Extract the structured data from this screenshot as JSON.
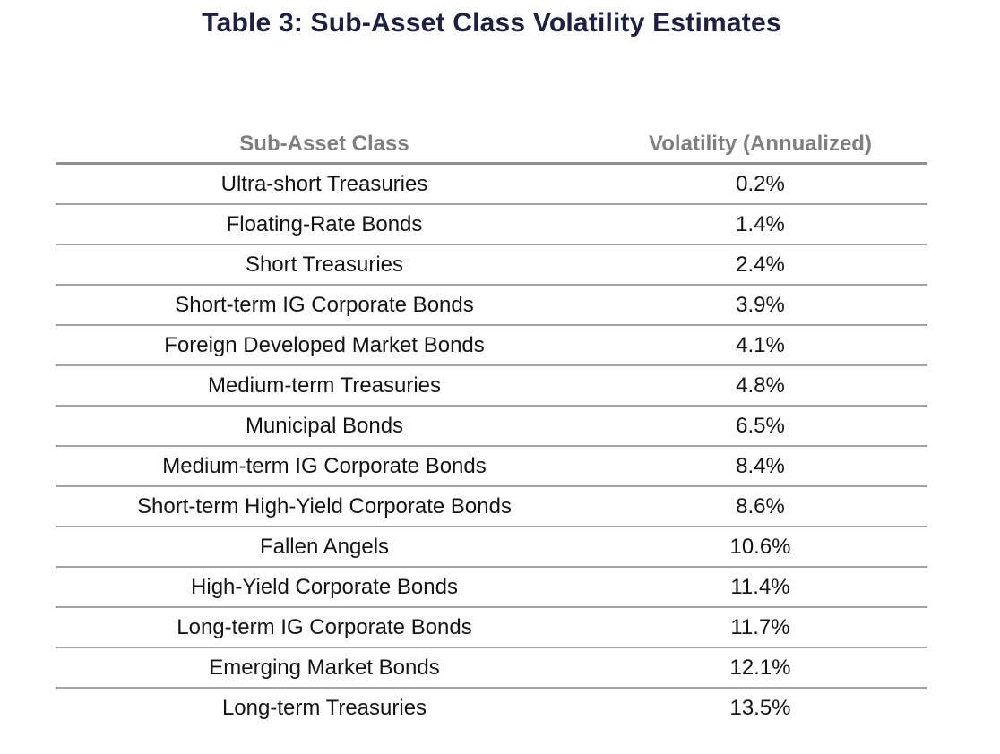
{
  "page": {
    "background_color": "#ffffff",
    "title_color": "#1e1f45",
    "header_text_color": "#7f7f7f",
    "row_text_color": "#141414",
    "separator_line_color": "#a4a4a4"
  },
  "title": {
    "text": "Table 3: Sub-Asset Class Volatility Estimates"
  },
  "table": {
    "columns": [
      "Sub-Asset Class",
      "Volatility (Annualized)"
    ],
    "rows": [
      {
        "sub_asset_class": "Ultra-short Treasuries",
        "volatility": "0.2%"
      },
      {
        "sub_asset_class": "Floating-Rate Bonds",
        "volatility": "1.4%"
      },
      {
        "sub_asset_class": "Short Treasuries",
        "volatility": "2.4%"
      },
      {
        "sub_asset_class": "Short-term IG Corporate Bonds",
        "volatility": "3.9%"
      },
      {
        "sub_asset_class": "Foreign Developed Market Bonds",
        "volatility": "4.1%"
      },
      {
        "sub_asset_class": "Medium-term Treasuries",
        "volatility": "4.8%"
      },
      {
        "sub_asset_class": "Municipal Bonds",
        "volatility": "6.5%"
      },
      {
        "sub_asset_class": "Medium-term IG Corporate Bonds",
        "volatility": "8.4%"
      },
      {
        "sub_asset_class": "Short-term High-Yield Corporate Bonds",
        "volatility": "8.6%"
      },
      {
        "sub_asset_class": "Fallen Angels",
        "volatility": "10.6%"
      },
      {
        "sub_asset_class": "High-Yield Corporate Bonds",
        "volatility": "11.4%"
      },
      {
        "sub_asset_class": "Long-term IG Corporate Bonds",
        "volatility": "11.7%"
      },
      {
        "sub_asset_class": "Emerging Market Bonds",
        "volatility": "12.1%"
      },
      {
        "sub_asset_class": "Long-term Treasuries",
        "volatility": "13.5%"
      }
    ]
  },
  "chart_data": {
    "type": "table",
    "title": "Table 3: Sub-Asset Class Volatility Estimates",
    "columns": [
      "Sub-Asset Class",
      "Volatility (Annualized)"
    ],
    "categories": [
      "Ultra-short Treasuries",
      "Floating-Rate Bonds",
      "Short Treasuries",
      "Short-term IG Corporate Bonds",
      "Foreign Developed Market Bonds",
      "Medium-term Treasuries",
      "Municipal Bonds",
      "Medium-term IG Corporate Bonds",
      "Short-term High-Yield Corporate Bonds",
      "Fallen Angels",
      "High-Yield Corporate Bonds",
      "Long-term IG Corporate Bonds",
      "Emerging Market Bonds",
      "Long-term Treasuries"
    ],
    "values": [
      0.2,
      1.4,
      2.4,
      3.9,
      4.1,
      4.8,
      6.5,
      8.4,
      8.6,
      10.6,
      11.4,
      11.7,
      12.1,
      13.5
    ],
    "unit": "%"
  }
}
